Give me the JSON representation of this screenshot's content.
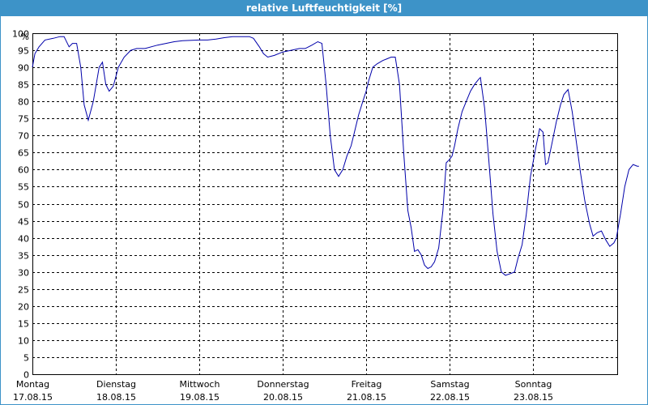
{
  "colors": {
    "title_bar": "#3d93c8",
    "title_text": "#ffffff",
    "series_line": "#0000aa",
    "grid": "#000000",
    "background": "#ffffff"
  },
  "chart_data": {
    "type": "line",
    "title": "relative Luftfeuchtigkeit [%]",
    "ylabel": "%",
    "xlabel": "",
    "ylim": [
      0,
      100
    ],
    "yticks": [
      0,
      5,
      10,
      15,
      20,
      25,
      30,
      35,
      40,
      45,
      50,
      55,
      60,
      65,
      70,
      75,
      80,
      85,
      90,
      95,
      100
    ],
    "grid": true,
    "grid_style": "dashed",
    "legend": "none",
    "xlim": [
      0,
      7
    ],
    "xticks": [
      {
        "day": "Montag",
        "date": "17.08.15",
        "x": 0
      },
      {
        "day": "Dienstag",
        "date": "18.08.15",
        "x": 1
      },
      {
        "day": "Mittwoch",
        "date": "19.08.15",
        "x": 2
      },
      {
        "day": "Donnerstag",
        "date": "20.08.15",
        "x": 3
      },
      {
        "day": "Freitag",
        "date": "21.08.15",
        "x": 4
      },
      {
        "day": "Samstag",
        "date": "22.08.15",
        "x": 5
      },
      {
        "day": "Sonntag",
        "date": "23.08.15",
        "x": 6
      }
    ],
    "series": [
      {
        "points": [
          [
            0.0,
            90
          ],
          [
            0.03,
            94
          ],
          [
            0.08,
            96
          ],
          [
            0.15,
            98
          ],
          [
            0.25,
            98.5
          ],
          [
            0.33,
            99
          ],
          [
            0.38,
            99
          ],
          [
            0.44,
            96
          ],
          [
            0.48,
            97
          ],
          [
            0.53,
            97
          ],
          [
            0.58,
            90
          ],
          [
            0.62,
            79
          ],
          [
            0.67,
            74.5
          ],
          [
            0.73,
            80
          ],
          [
            0.8,
            90
          ],
          [
            0.84,
            91.5
          ],
          [
            0.88,
            85
          ],
          [
            0.92,
            83
          ],
          [
            0.97,
            84.5
          ],
          [
            1.03,
            90
          ],
          [
            1.1,
            93
          ],
          [
            1.18,
            95
          ],
          [
            1.25,
            95.5
          ],
          [
            1.35,
            95.5
          ],
          [
            1.5,
            96.5
          ],
          [
            1.6,
            97
          ],
          [
            1.7,
            97.5
          ],
          [
            1.8,
            97.8
          ],
          [
            2.0,
            98
          ],
          [
            2.1,
            98
          ],
          [
            2.2,
            98.3
          ],
          [
            2.3,
            98.7
          ],
          [
            2.4,
            99
          ],
          [
            2.5,
            99
          ],
          [
            2.6,
            99
          ],
          [
            2.65,
            98.5
          ],
          [
            2.72,
            96
          ],
          [
            2.77,
            94
          ],
          [
            2.82,
            93
          ],
          [
            2.9,
            93.5
          ],
          [
            3.0,
            94.5
          ],
          [
            3.1,
            95
          ],
          [
            3.2,
            95.5
          ],
          [
            3.27,
            95.5
          ],
          [
            3.35,
            96.5
          ],
          [
            3.42,
            97.5
          ],
          [
            3.47,
            97
          ],
          [
            3.52,
            85
          ],
          [
            3.57,
            70
          ],
          [
            3.62,
            60
          ],
          [
            3.67,
            58
          ],
          [
            3.72,
            60
          ],
          [
            3.77,
            64
          ],
          [
            3.82,
            67
          ],
          [
            3.86,
            71
          ],
          [
            3.91,
            76
          ],
          [
            3.96,
            80
          ],
          [
            4.0,
            83
          ],
          [
            4.03,
            86
          ],
          [
            4.08,
            90
          ],
          [
            4.13,
            91
          ],
          [
            4.2,
            92
          ],
          [
            4.25,
            92.5
          ],
          [
            4.3,
            93
          ],
          [
            4.35,
            93
          ],
          [
            4.4,
            85
          ],
          [
            4.45,
            65
          ],
          [
            4.5,
            48
          ],
          [
            4.54,
            43
          ],
          [
            4.58,
            36
          ],
          [
            4.62,
            36.5
          ],
          [
            4.66,
            35
          ],
          [
            4.7,
            32
          ],
          [
            4.74,
            31
          ],
          [
            4.78,
            31.5
          ],
          [
            4.82,
            33
          ],
          [
            4.87,
            37
          ],
          [
            4.92,
            48
          ],
          [
            4.96,
            62
          ],
          [
            5.0,
            63
          ],
          [
            5.03,
            64
          ],
          [
            5.06,
            67
          ],
          [
            5.1,
            72
          ],
          [
            5.15,
            77
          ],
          [
            5.2,
            80
          ],
          [
            5.25,
            83
          ],
          [
            5.3,
            85
          ],
          [
            5.35,
            86.5
          ],
          [
            5.37,
            87
          ],
          [
            5.42,
            78
          ],
          [
            5.47,
            63
          ],
          [
            5.52,
            47
          ],
          [
            5.57,
            36
          ],
          [
            5.62,
            30
          ],
          [
            5.67,
            29
          ],
          [
            5.73,
            29.5
          ],
          [
            5.78,
            30
          ],
          [
            5.82,
            34
          ],
          [
            5.87,
            38
          ],
          [
            5.92,
            47
          ],
          [
            5.97,
            58
          ],
          [
            6.03,
            66
          ],
          [
            6.08,
            72
          ],
          [
            6.12,
            71
          ],
          [
            6.15,
            61.5
          ],
          [
            6.18,
            62
          ],
          [
            6.23,
            68
          ],
          [
            6.28,
            74
          ],
          [
            6.33,
            79
          ],
          [
            6.37,
            82
          ],
          [
            6.42,
            83.5
          ],
          [
            6.47,
            77
          ],
          [
            6.52,
            68
          ],
          [
            6.57,
            59
          ],
          [
            6.62,
            51
          ],
          [
            6.68,
            44
          ],
          [
            6.72,
            40.5
          ],
          [
            6.77,
            41.5
          ],
          [
            6.82,
            42
          ],
          [
            6.87,
            39.5
          ],
          [
            6.92,
            37.5
          ],
          [
            6.97,
            38.5
          ],
          [
            7.0,
            40
          ],
          [
            7.05,
            47
          ],
          [
            7.1,
            55
          ],
          [
            7.15,
            60
          ],
          [
            7.2,
            61.5
          ],
          [
            7.25,
            61
          ],
          [
            7.27,
            61
          ]
        ]
      }
    ]
  }
}
